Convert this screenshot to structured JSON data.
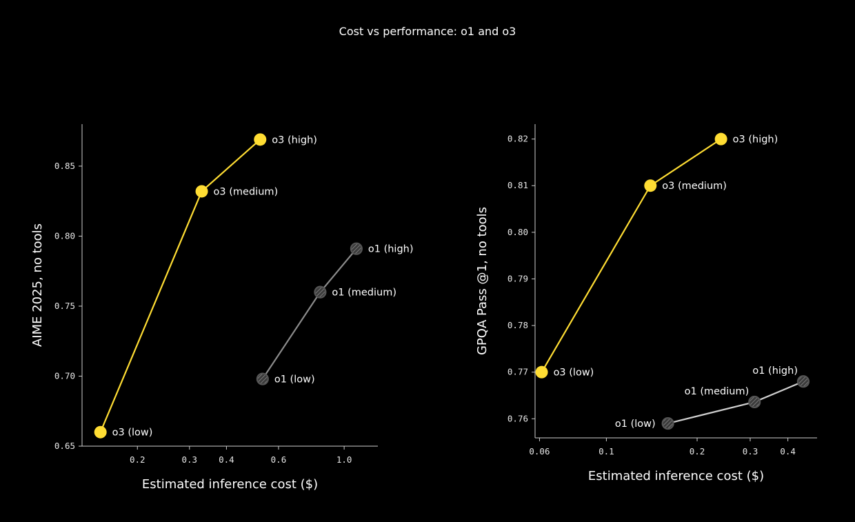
{
  "title": "Cost vs performance: o1 and o3",
  "colors": {
    "o3": "#ffdd33",
    "o1_line_left": "#8c8c8c",
    "o1_line_right": "#d0d0d0",
    "o1_marker": "#555555",
    "axis": "#cfcfcf",
    "background": "#000000"
  },
  "chart_data": [
    {
      "type": "line",
      "xlabel": "Estimated inference cost ($)",
      "ylabel": "AIME 2025, no tools",
      "xscale": "log",
      "xlim": [
        0.13,
        1.3
      ],
      "ylim": [
        0.65,
        0.88
      ],
      "xticks": [
        {
          "v": 0.2,
          "label": "0.2"
        },
        {
          "v": 0.3,
          "label": "0.3"
        },
        {
          "v": 0.4,
          "label": "0.4"
        },
        {
          "v": 0.6,
          "label": "0.6"
        },
        {
          "v": 1.0,
          "label": "1.0"
        }
      ],
      "yticks": [
        {
          "v": 0.65,
          "label": "0.65"
        },
        {
          "v": 0.7,
          "label": "0.70"
        },
        {
          "v": 0.75,
          "label": "0.75"
        },
        {
          "v": 0.8,
          "label": "0.80"
        },
        {
          "v": 0.85,
          "label": "0.85"
        }
      ],
      "grid": false,
      "series": [
        {
          "name": "o3",
          "color_key": "o3",
          "line_key": "o3",
          "style": "filled",
          "points": [
            {
              "x": 0.15,
              "y": 0.66,
              "label": "o3 (low)",
              "anchor": "right"
            },
            {
              "x": 0.33,
              "y": 0.832,
              "label": "o3 (medium)",
              "anchor": "right"
            },
            {
              "x": 0.52,
              "y": 0.869,
              "label": "o3 (high)",
              "anchor": "right"
            }
          ]
        },
        {
          "name": "o1",
          "color_key": "o1_marker",
          "line_key": "o1_line_left",
          "style": "hatched",
          "points": [
            {
              "x": 0.53,
              "y": 0.698,
              "label": "o1 (low)",
              "anchor": "right"
            },
            {
              "x": 0.83,
              "y": 0.76,
              "label": "o1 (medium)",
              "anchor": "right"
            },
            {
              "x": 1.1,
              "y": 0.791,
              "label": "o1 (high)",
              "anchor": "right"
            }
          ]
        }
      ]
    },
    {
      "type": "line",
      "xlabel": "Estimated inference cost ($)",
      "ylabel": "GPQA Pass @1, no tools",
      "xscale": "log",
      "xlim": [
        0.058,
        0.5
      ],
      "ylim": [
        0.7559,
        0.8232
      ],
      "xticks": [
        {
          "v": 0.06,
          "label": "0.06"
        },
        {
          "v": 0.1,
          "label": "0.1"
        },
        {
          "v": 0.2,
          "label": "0.2"
        },
        {
          "v": 0.3,
          "label": "0.3"
        },
        {
          "v": 0.4,
          "label": "0.4"
        }
      ],
      "yticks": [
        {
          "v": 0.76,
          "label": "0.76"
        },
        {
          "v": 0.77,
          "label": "0.77"
        },
        {
          "v": 0.78,
          "label": "0.78"
        },
        {
          "v": 0.79,
          "label": "0.79"
        },
        {
          "v": 0.8,
          "label": "0.80"
        },
        {
          "v": 0.81,
          "label": "0.81"
        },
        {
          "v": 0.82,
          "label": "0.82"
        }
      ],
      "grid": false,
      "series": [
        {
          "name": "o3",
          "color_key": "o3",
          "line_key": "o3",
          "style": "filled",
          "points": [
            {
              "x": 0.061,
              "y": 0.77,
              "label": "o3 (low)",
              "anchor": "right"
            },
            {
              "x": 0.14,
              "y": 0.81,
              "label": "o3 (medium)",
              "anchor": "right"
            },
            {
              "x": 0.24,
              "y": 0.82,
              "label": "o3 (high)",
              "anchor": "right"
            }
          ]
        },
        {
          "name": "o1",
          "color_key": "o1_marker",
          "line_key": "o1_line_right",
          "style": "hatched",
          "points": [
            {
              "x": 0.16,
              "y": 0.759,
              "label": "o1 (low)",
              "anchor": "left"
            },
            {
              "x": 0.31,
              "y": 0.7636,
              "label": "o1 (medium)",
              "anchor": "above-left"
            },
            {
              "x": 0.45,
              "y": 0.768,
              "label": "o1 (high)",
              "anchor": "above-left"
            }
          ]
        }
      ]
    }
  ]
}
